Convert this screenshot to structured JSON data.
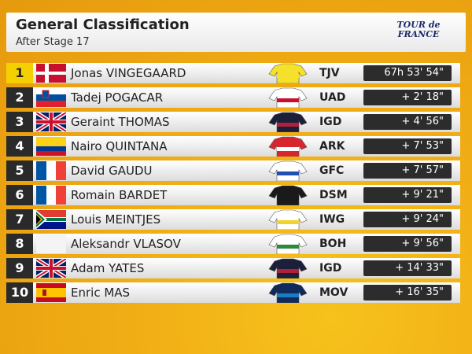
{
  "header": {
    "title": "General Classification",
    "subtitle": "After Stage 17",
    "logo": "TOUR de FRANCE"
  },
  "table": {
    "rows": [
      [
        "1",
        "Jonas VINGEGAARD",
        "TJV",
        "67h 53' 54\""
      ],
      [
        "2",
        "Tadej POGACAR",
        "UAD",
        "+ 2' 18\""
      ],
      [
        "3",
        "Geraint THOMAS",
        "IGD",
        "+ 4' 56\""
      ],
      [
        "4",
        "Nairo QUINTANA",
        "ARK",
        "+ 7' 53\""
      ],
      [
        "5",
        "David GAUDU",
        "GFC",
        "+ 7' 57\""
      ],
      [
        "6",
        "Romain BARDET",
        "DSM",
        "+ 9' 21\""
      ],
      [
        "7",
        "Louis MEINTJES",
        "IWG",
        "+ 9' 24\""
      ],
      [
        "8",
        "Aleksandr VLASOV",
        "BOH",
        "+ 9' 56\""
      ],
      [
        "9",
        "Adam YATES",
        "IGD",
        "+ 14' 33\""
      ],
      [
        "10",
        "Enric MAS",
        "MOV",
        "+ 16' 35\""
      ]
    ]
  }
}
